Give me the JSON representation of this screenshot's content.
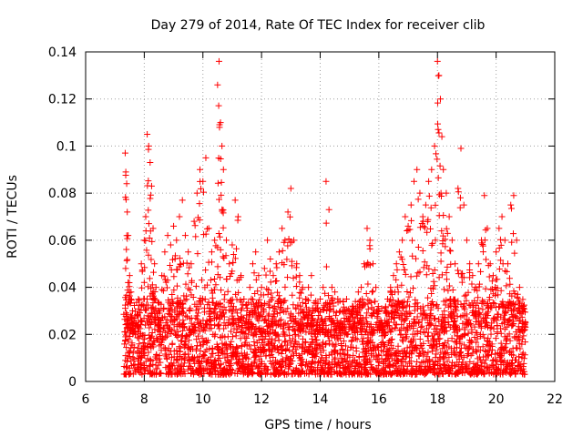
{
  "chart_data": {
    "type": "scatter",
    "title": "Day 279 of 2014, Rate Of TEC Index for receiver clib",
    "xlabel": "GPS time / hours",
    "ylabel": "ROTI / TECUs",
    "xlim": [
      6,
      22
    ],
    "ylim": [
      0,
      0.14
    ],
    "x_ticks": [
      6,
      8,
      10,
      12,
      14,
      16,
      18,
      20,
      22
    ],
    "x_tick_labels": [
      "6",
      "8",
      "10",
      "12",
      "14",
      "16",
      "18",
      "20",
      "22"
    ],
    "y_ticks": [
      0,
      0.02,
      0.04,
      0.06,
      0.08,
      0.1,
      0.12,
      0.14
    ],
    "y_tick_labels": [
      "0",
      "0.02",
      "0.04",
      "0.06",
      "0.08",
      "0.1",
      "0.12",
      "0.14"
    ],
    "grid": true,
    "marker": "+",
    "marker_color": "#ff0000",
    "series": [
      {
        "name": "ROTI",
        "x": [
          7.35,
          7.37,
          7.4,
          7.42,
          7.45,
          7.5,
          7.55,
          7.6,
          7.65,
          7.7,
          7.8,
          7.9,
          8.0,
          8.05,
          8.1,
          8.15,
          8.2,
          8.25,
          8.3,
          8.35,
          8.4,
          8.5,
          8.6,
          8.7,
          8.8,
          8.9,
          9.0,
          9.1,
          9.2,
          9.3,
          9.4,
          9.5,
          9.6,
          9.7,
          9.8,
          9.9,
          10.0,
          10.1,
          10.2,
          10.3,
          10.4,
          10.5,
          10.55,
          10.6,
          10.65,
          10.7,
          10.8,
          10.9,
          11.0,
          11.1,
          11.2,
          11.3,
          11.4,
          11.5,
          11.6,
          11.7,
          11.8,
          11.9,
          12.0,
          12.1,
          12.2,
          12.3,
          12.4,
          12.5,
          12.6,
          12.7,
          12.8,
          12.9,
          13.0,
          13.1,
          13.2,
          13.3,
          13.4,
          13.5,
          13.6,
          13.7,
          13.8,
          13.9,
          14.0,
          14.1,
          14.2,
          14.3,
          14.4,
          14.5,
          14.6,
          14.7,
          14.8,
          14.9,
          15.0,
          15.1,
          15.2,
          15.3,
          15.4,
          15.5,
          15.6,
          15.7,
          15.8,
          15.9,
          16.0,
          16.1,
          16.2,
          16.3,
          16.4,
          16.5,
          16.6,
          16.7,
          16.8,
          16.9,
          17.0,
          17.1,
          17.2,
          17.3,
          17.4,
          17.5,
          17.6,
          17.7,
          17.8,
          17.9,
          18.0,
          18.05,
          18.1,
          18.15,
          18.2,
          18.3,
          18.4,
          18.5,
          18.6,
          18.7,
          18.8,
          18.9,
          19.0,
          19.1,
          19.2,
          19.3,
          19.4,
          19.5,
          19.6,
          19.7,
          19.8,
          19.9,
          20.0,
          20.1,
          20.2,
          20.3,
          20.4,
          20.5,
          20.6,
          20.7,
          20.8,
          20.9,
          21.0
        ],
        "y": [
          0.097,
          0.089,
          0.084,
          0.072,
          0.062,
          0.045,
          0.038,
          0.03,
          0.025,
          0.02,
          0.035,
          0.05,
          0.06,
          0.07,
          0.105,
          0.1,
          0.093,
          0.083,
          0.065,
          0.05,
          0.04,
          0.03,
          0.045,
          0.055,
          0.062,
          0.058,
          0.066,
          0.06,
          0.07,
          0.077,
          0.062,
          0.055,
          0.05,
          0.068,
          0.08,
          0.09,
          0.085,
          0.095,
          0.065,
          0.055,
          0.06,
          0.126,
          0.136,
          0.11,
          0.1,
          0.09,
          0.06,
          0.05,
          0.058,
          0.077,
          0.07,
          0.045,
          0.035,
          0.03,
          0.04,
          0.05,
          0.055,
          0.045,
          0.04,
          0.048,
          0.06,
          0.052,
          0.045,
          0.05,
          0.055,
          0.065,
          0.06,
          0.072,
          0.082,
          0.06,
          0.05,
          0.045,
          0.04,
          0.035,
          0.04,
          0.045,
          0.03,
          0.025,
          0.035,
          0.04,
          0.085,
          0.073,
          0.04,
          0.038,
          0.035,
          0.025,
          0.03,
          0.035,
          0.03,
          0.032,
          0.034,
          0.038,
          0.04,
          0.05,
          0.065,
          0.06,
          0.05,
          0.04,
          0.03,
          0.025,
          0.03,
          0.035,
          0.04,
          0.045,
          0.05,
          0.055,
          0.06,
          0.07,
          0.066,
          0.075,
          0.085,
          0.09,
          0.08,
          0.07,
          0.075,
          0.085,
          0.09,
          0.1,
          0.136,
          0.13,
          0.12,
          0.104,
          0.09,
          0.08,
          0.07,
          0.06,
          0.05,
          0.082,
          0.099,
          0.075,
          0.06,
          0.05,
          0.045,
          0.04,
          0.05,
          0.06,
          0.079,
          0.065,
          0.05,
          0.045,
          0.055,
          0.065,
          0.07,
          0.06,
          0.05,
          0.075,
          0.079,
          0.06,
          0.04,
          0.03,
          0.025
        ]
      }
    ],
    "density_band": {
      "description": "dense cloud of low values",
      "x_range": [
        7.3,
        21.0
      ],
      "y_range": [
        0.003,
        0.035
      ]
    }
  }
}
